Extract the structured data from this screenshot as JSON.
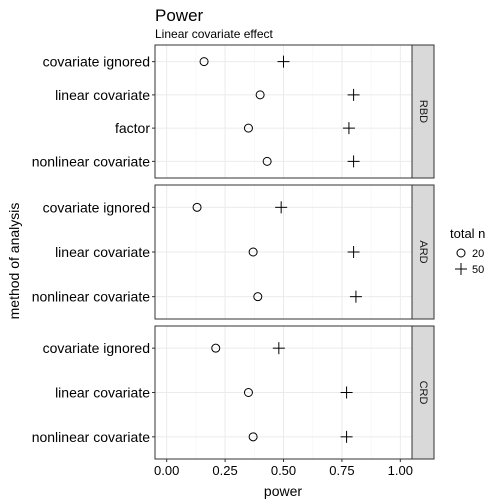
{
  "chart_data": {
    "type": "scatter",
    "title": "Power",
    "subtitle": "Linear covariate effect",
    "xlabel": "power",
    "ylabel": "method of analysis",
    "xlim": [
      -0.05,
      1.05
    ],
    "xticks": [
      "0.00",
      "0.25",
      "0.50",
      "0.75",
      "1.00"
    ],
    "grid": true,
    "legend": {
      "title": "total n",
      "placement": "right",
      "entries": [
        {
          "label": "20",
          "shape": "circle"
        },
        {
          "label": "50",
          "shape": "plus"
        }
      ]
    },
    "facets": [
      {
        "label": "RBD",
        "rows": [
          {
            "category": "covariate ignored",
            "n20": 0.16,
            "n50": 0.5
          },
          {
            "category": "linear covariate",
            "n20": 0.4,
            "n50": 0.8
          },
          {
            "category": "factor",
            "n20": 0.35,
            "n50": 0.78
          },
          {
            "category": "nonlinear covariate",
            "n20": 0.43,
            "n50": 0.8
          }
        ]
      },
      {
        "label": "ARD",
        "rows": [
          {
            "category": "covariate ignored",
            "n20": 0.13,
            "n50": 0.49
          },
          {
            "category": "linear covariate",
            "n20": 0.37,
            "n50": 0.8
          },
          {
            "category": "nonlinear covariate",
            "n20": 0.39,
            "n50": 0.81
          }
        ]
      },
      {
        "label": "CRD",
        "rows": [
          {
            "category": "covariate ignored",
            "n20": 0.21,
            "n50": 0.48
          },
          {
            "category": "linear covariate",
            "n20": 0.35,
            "n50": 0.77
          },
          {
            "category": "nonlinear covariate",
            "n20": 0.37,
            "n50": 0.77
          }
        ]
      }
    ]
  }
}
